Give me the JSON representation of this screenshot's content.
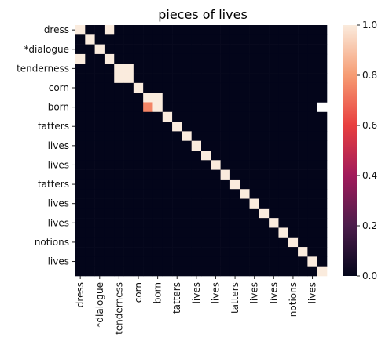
{
  "chart_data": {
    "type": "heatmap",
    "title": "pieces of lives",
    "xlabel": "",
    "ylabel": "",
    "row_tick_labels": [
      "dress",
      "*dialogue",
      "tenderness",
      "corn",
      "born",
      "tatters",
      "lives",
      "lives",
      "tatters",
      "lives",
      "lives",
      "notions",
      "lives"
    ],
    "col_tick_labels": [
      "dress",
      "*dialogue",
      "tenderness",
      "corn",
      "born",
      "tatters",
      "lives",
      "lives",
      "tatters",
      "lives",
      "lives",
      "notions",
      "lives"
    ],
    "row_tick_indices": [
      0,
      2,
      4,
      6,
      8,
      10,
      12,
      14,
      16,
      18,
      20,
      22,
      24
    ],
    "col_tick_indices": [
      0,
      2,
      4,
      6,
      8,
      10,
      12,
      14,
      16,
      18,
      20,
      22,
      24
    ],
    "n_rows": 26,
    "n_cols": 26,
    "values": [
      [
        1,
        0,
        0,
        1,
        0,
        0,
        0,
        0,
        0,
        0,
        0,
        0,
        0,
        0,
        0,
        0,
        0,
        0,
        0,
        0,
        0,
        0,
        0,
        0,
        0,
        0
      ],
      [
        0,
        1,
        0,
        0,
        0,
        0,
        0,
        0,
        0,
        0,
        0,
        0,
        0,
        0,
        0,
        0,
        0,
        0,
        0,
        0,
        0,
        0,
        0,
        0,
        0,
        0
      ],
      [
        0,
        0,
        1,
        0,
        0,
        0,
        0,
        0,
        0,
        0,
        0,
        0,
        0,
        0,
        0,
        0,
        0,
        0,
        0,
        0,
        0,
        0,
        0,
        0,
        0,
        0
      ],
      [
        1,
        0,
        0,
        1,
        0,
        0,
        0,
        0,
        0,
        0,
        0,
        0,
        0,
        0,
        0,
        0,
        0,
        0,
        0,
        0,
        0,
        0,
        0,
        0,
        0,
        0
      ],
      [
        0,
        0,
        0,
        0,
        1,
        1,
        0,
        0,
        0,
        0,
        0,
        0,
        0,
        0,
        0,
        0,
        0,
        0,
        0,
        0,
        0,
        0,
        0,
        0,
        0,
        0
      ],
      [
        0,
        0,
        0,
        0,
        1,
        1,
        0,
        0,
        0,
        0,
        0,
        0,
        0,
        0,
        0,
        0,
        0,
        0,
        0,
        0,
        0,
        0,
        0,
        0,
        0,
        0
      ],
      [
        0,
        0,
        0,
        0,
        0,
        0,
        1,
        0,
        0,
        0,
        0,
        0,
        0,
        0,
        0,
        0,
        0,
        0,
        0,
        0,
        0,
        0,
        0,
        0,
        0,
        0
      ],
      [
        0,
        0,
        0,
        0,
        0,
        0,
        0,
        1,
        1,
        0,
        0,
        0,
        0,
        0,
        0,
        0,
        0,
        0,
        0,
        0,
        0,
        0,
        0,
        0,
        0,
        0
      ],
      [
        0,
        0,
        0,
        0,
        0,
        0,
        0,
        0.75,
        1,
        0,
        0,
        0,
        0,
        0,
        0,
        0,
        0,
        0,
        0,
        0,
        0,
        0,
        0,
        0,
        0
      ],
      [
        0,
        0,
        0,
        0,
        0,
        0,
        0,
        0,
        0,
        1,
        0,
        0,
        0,
        0,
        0,
        0,
        0,
        0,
        0,
        0,
        0,
        0,
        0,
        0,
        0,
        0
      ],
      [
        0,
        0,
        0,
        0,
        0,
        0,
        0,
        0,
        0,
        0,
        1,
        0,
        0,
        0,
        0,
        0,
        0,
        0,
        0,
        0,
        0,
        0,
        0,
        0,
        0,
        0
      ],
      [
        0,
        0,
        0,
        0,
        0,
        0,
        0,
        0,
        0,
        0,
        0,
        1,
        0,
        0,
        0,
        0,
        0,
        0,
        0,
        0,
        0,
        0,
        0,
        0,
        0,
        0
      ],
      [
        0,
        0,
        0,
        0,
        0,
        0,
        0,
        0,
        0,
        0,
        0,
        0,
        1,
        0,
        0,
        0,
        0,
        0,
        0,
        0,
        0,
        0,
        0,
        0,
        0,
        0
      ],
      [
        0,
        0,
        0,
        0,
        0,
        0,
        0,
        0,
        0,
        0,
        0,
        0,
        0,
        1,
        0,
        0,
        0,
        0,
        0,
        0,
        0,
        0,
        0,
        0,
        0,
        0
      ],
      [
        0,
        0,
        0,
        0,
        0,
        0,
        0,
        0,
        0,
        0,
        0,
        0,
        0,
        0,
        1,
        0,
        0,
        0,
        0,
        0,
        0,
        0,
        0,
        0,
        0,
        0
      ],
      [
        0,
        0,
        0,
        0,
        0,
        0,
        0,
        0,
        0,
        0,
        0,
        0,
        0,
        0,
        0,
        1,
        0,
        0,
        0,
        0,
        0,
        0,
        0,
        0,
        0,
        0
      ],
      [
        0,
        0,
        0,
        0,
        0,
        0,
        0,
        0,
        0,
        0,
        0,
        0,
        0,
        0,
        0,
        0,
        1,
        0,
        0,
        0,
        0,
        0,
        0,
        0,
        0,
        0
      ],
      [
        0,
        0,
        0,
        0,
        0,
        0,
        0,
        0,
        0,
        0,
        0,
        0,
        0,
        0,
        0,
        0,
        0,
        1,
        0,
        0,
        0,
        0,
        0,
        0,
        0,
        0
      ],
      [
        0,
        0,
        0,
        0,
        0,
        0,
        0,
        0,
        0,
        0,
        0,
        0,
        0,
        0,
        0,
        0,
        0,
        0,
        1,
        0,
        0,
        0,
        0,
        0,
        0,
        0
      ],
      [
        0,
        0,
        0,
        0,
        0,
        0,
        0,
        0,
        0,
        0,
        0,
        0,
        0,
        0,
        0,
        0,
        0,
        0,
        0,
        1,
        0,
        0,
        0,
        0,
        0,
        0
      ],
      [
        0,
        0,
        0,
        0,
        0,
        0,
        0,
        0,
        0,
        0,
        0,
        0,
        0,
        0,
        0,
        0,
        0,
        0,
        0,
        0,
        1,
        0,
        0,
        0,
        0,
        0
      ],
      [
        0,
        0,
        0,
        0,
        0,
        0,
        0,
        0,
        0,
        0,
        0,
        0,
        0,
        0,
        0,
        0,
        0,
        0,
        0,
        0,
        0,
        1,
        0,
        0,
        0,
        0
      ],
      [
        0,
        0,
        0,
        0,
        0,
        0,
        0,
        0,
        0,
        0,
        0,
        0,
        0,
        0,
        0,
        0,
        0,
        0,
        0,
        0,
        0,
        0,
        1,
        0,
        0,
        0
      ],
      [
        0,
        0,
        0,
        0,
        0,
        0,
        0,
        0,
        0,
        0,
        0,
        0,
        0,
        0,
        0,
        0,
        0,
        0,
        0,
        0,
        0,
        0,
        0,
        1,
        0,
        0
      ],
      [
        0,
        0,
        0,
        0,
        0,
        0,
        0,
        0,
        0,
        0,
        0,
        0,
        0,
        0,
        0,
        0,
        0,
        0,
        0,
        0,
        0,
        0,
        0,
        0,
        1,
        0
      ],
      [
        0,
        0,
        0,
        0,
        0,
        0,
        0,
        0,
        0,
        0,
        0,
        0,
        0,
        0,
        0,
        0,
        0,
        0,
        0,
        0,
        0,
        0,
        0,
        0,
        0,
        1
      ]
    ],
    "vmin": 0,
    "vmax": 1,
    "colorbar_ticks": [
      "0.0",
      "0.2",
      "0.4",
      "0.6",
      "0.8",
      "1.0"
    ],
    "colormap": "rocket",
    "colormap_stops": [
      "#03051a",
      "#4c1d4b",
      "#a11a5b",
      "#e83f3f",
      "#f69c73",
      "#faebdd"
    ]
  }
}
